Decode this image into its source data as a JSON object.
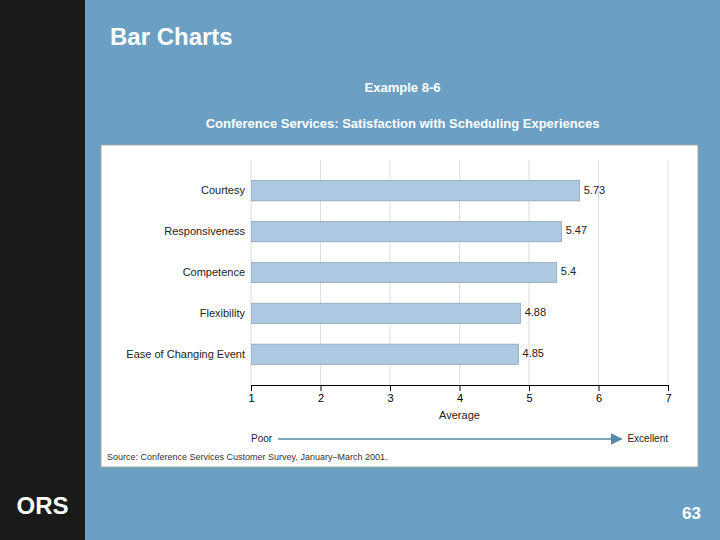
{
  "page": {
    "logo": "ORS",
    "header": "Bar Charts",
    "page_number": "63"
  },
  "chart_data": {
    "type": "bar",
    "orientation": "horizontal",
    "title": "Example 8-6",
    "subtitle": "Conference Services:  Satisfaction with Scheduling Experiences",
    "categories": [
      "Ease of Changing Event",
      "Flexibility",
      "Competence",
      "Responsiveness",
      "Courtesy"
    ],
    "values": [
      4.85,
      4.88,
      5.4,
      5.47,
      5.73
    ],
    "color": "#adc8e0",
    "xlim": [
      1,
      7
    ],
    "xticks": [
      1,
      2,
      3,
      4,
      5,
      6,
      7
    ],
    "xlabel": "Average",
    "grid": true,
    "data_labels": true,
    "annotations": [
      "Poor",
      "Excellent"
    ],
    "source": "Source:  Conference Services Customer Survey, January–March 2001."
  }
}
